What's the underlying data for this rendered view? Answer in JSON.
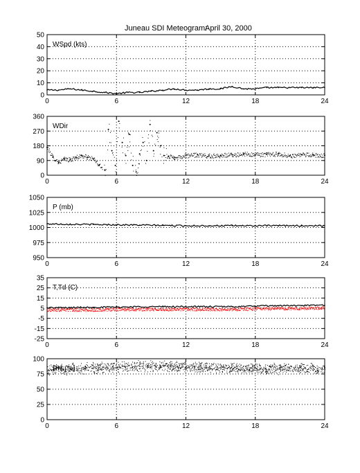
{
  "figure": {
    "title": "Juneau SDI Meteogram:",
    "date": "April 30, 2000"
  },
  "chart_data": [
    {
      "type": "line",
      "label": "WSpd (kts)",
      "xlim": [
        0,
        24
      ],
      "ylim": [
        0,
        50
      ],
      "xticks": [
        0,
        6,
        12,
        18,
        24
      ],
      "yticks": [
        0,
        10,
        20,
        30,
        40,
        50
      ],
      "grid": true,
      "series": [
        {
          "color": "#000000",
          "style": "line",
          "x": [
            0,
            1,
            2,
            3,
            4,
            5,
            6,
            7,
            8,
            9,
            10,
            11,
            12,
            13,
            14,
            15,
            16,
            17,
            18,
            19,
            20,
            21,
            22,
            23,
            24
          ],
          "y": [
            4,
            4,
            5,
            4,
            3,
            2,
            1,
            2,
            2,
            3,
            4,
            5,
            4,
            4,
            5,
            5,
            7,
            5,
            5,
            6,
            6,
            6,
            6,
            6,
            6
          ]
        }
      ]
    },
    {
      "type": "scatter",
      "label": "WDir",
      "xlim": [
        0,
        24
      ],
      "ylim": [
        0,
        360
      ],
      "xticks": [
        0,
        6,
        12,
        18,
        24
      ],
      "yticks": [
        0,
        90,
        180,
        270,
        360
      ],
      "grid": true,
      "series": [
        {
          "color": "#000000",
          "style": "points",
          "x": [
            0,
            0.5,
            1,
            1.5,
            2,
            2.5,
            3,
            3.5,
            4,
            4.5,
            5,
            5.3,
            5.6,
            5.9,
            6.2,
            6.5,
            6.8,
            7.1,
            7.4,
            7.7,
            8,
            8.3,
            8.6,
            8.9,
            9.2,
            9.5,
            9.8,
            10.1,
            10.5,
            11,
            12,
            13,
            14,
            15,
            16,
            17,
            18,
            19,
            20,
            21,
            22,
            23,
            24
          ],
          "y": [
            170,
            110,
            80,
            100,
            95,
            110,
            120,
            110,
            100,
            60,
            30,
            280,
            150,
            60,
            330,
            200,
            120,
            250,
            60,
            20,
            130,
            200,
            90,
            310,
            150,
            260,
            180,
            120,
            115,
            110,
            120,
            125,
            118,
            122,
            125,
            130,
            125,
            128,
            130,
            120,
            125,
            125,
            122
          ]
        }
      ]
    },
    {
      "type": "line",
      "label": "P (mb)",
      "xlim": [
        0,
        24
      ],
      "ylim": [
        950,
        1050
      ],
      "xticks": [
        0,
        6,
        12,
        18,
        24
      ],
      "yticks": [
        950,
        975,
        1000,
        1025,
        1050
      ],
      "grid": true,
      "series": [
        {
          "color": "#000000",
          "style": "line",
          "x": [
            0,
            2,
            4,
            6,
            8,
            10,
            12,
            14,
            16,
            18,
            20,
            22,
            24
          ],
          "y": [
            1006,
            1005.5,
            1005,
            1004.5,
            1004,
            1003.5,
            1003,
            1003,
            1003,
            1003,
            1003,
            1003,
            1003
          ]
        }
      ]
    },
    {
      "type": "line",
      "label": "T,Td (C)",
      "xlim": [
        0,
        24
      ],
      "ylim": [
        -25,
        35
      ],
      "xticks": [
        0,
        6,
        12,
        18,
        24
      ],
      "yticks": [
        -25,
        -15,
        -5,
        5,
        15,
        25,
        35
      ],
      "grid": true,
      "series": [
        {
          "color": "#000000",
          "style": "line",
          "x": [
            0,
            2,
            4,
            6,
            8,
            10,
            12,
            14,
            16,
            18,
            20,
            22,
            24
          ],
          "y": [
            5.5,
            5.5,
            6,
            6,
            6.5,
            6.5,
            6.5,
            6.5,
            6.5,
            7,
            7.5,
            7.5,
            8
          ]
        },
        {
          "color": "#ff0000",
          "style": "band",
          "x": [
            0,
            2,
            4,
            6,
            8,
            10,
            12,
            14,
            16,
            18,
            20,
            22,
            24
          ],
          "y": [
            3.5,
            3.5,
            3.5,
            4,
            4,
            4,
            4,
            4,
            4,
            4.5,
            5,
            5,
            5.5
          ]
        }
      ]
    },
    {
      "type": "scatter",
      "label": "RH (%)",
      "xlim": [
        0,
        24
      ],
      "ylim": [
        0,
        100
      ],
      "xticks": [
        0,
        6,
        12,
        18,
        24
      ],
      "yticks": [
        0,
        25,
        50,
        75,
        100
      ],
      "grid": true,
      "series": [
        {
          "color": "#000000",
          "style": "cloud",
          "x": [
            0,
            2,
            4,
            6,
            8,
            10,
            12,
            14,
            16,
            18,
            20,
            22,
            24
          ],
          "y": [
            82,
            84,
            85,
            87,
            88,
            88,
            87,
            86,
            85,
            84,
            84,
            85,
            84
          ],
          "spread": 10
        }
      ]
    }
  ]
}
